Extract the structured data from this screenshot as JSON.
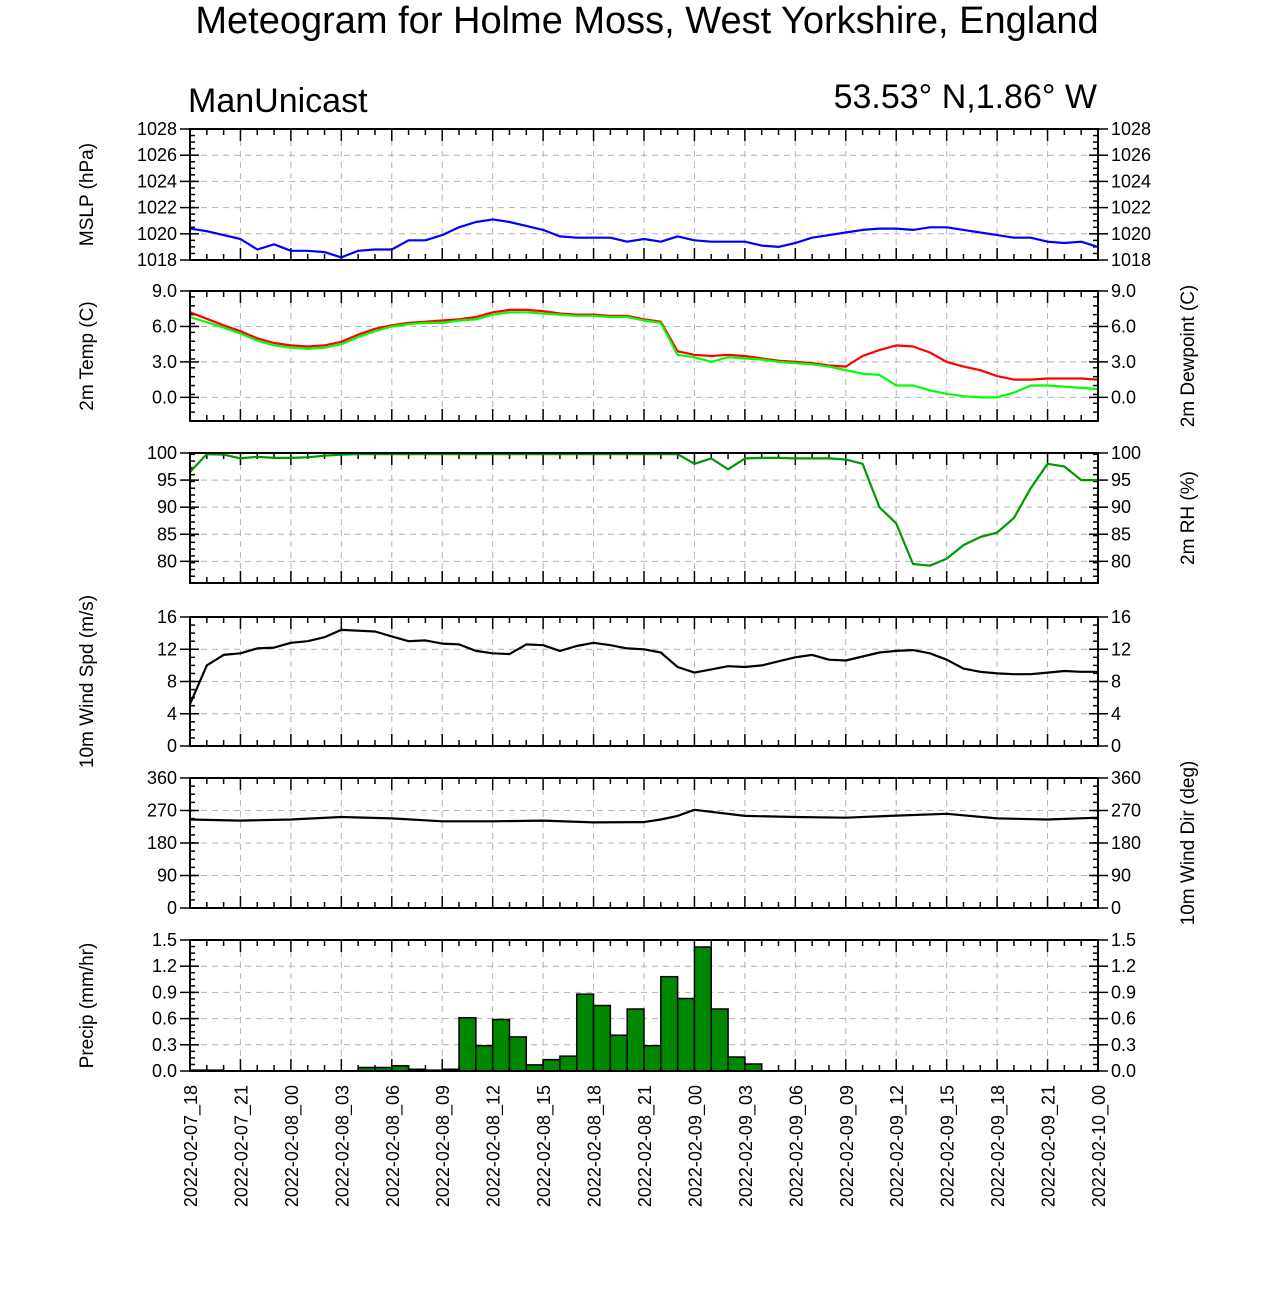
{
  "title": "Meteogram for Holme Moss, West Yorkshire, England",
  "model": "ManUnicast",
  "location": "53.53° N,1.86° W",
  "chart_data": [
    {
      "type": "line",
      "name": "mslp",
      "ylabel": "MSLP (hPa)",
      "ylim": [
        1018,
        1028
      ],
      "yticks": [
        "1018",
        "1020",
        "1022",
        "1024",
        "1026",
        "1028"
      ],
      "grid": true,
      "x_hours": [
        0,
        1,
        2,
        3,
        4,
        5,
        6,
        7,
        8,
        9,
        10,
        11,
        12,
        13,
        14,
        15,
        16,
        17,
        18,
        19,
        20,
        21,
        22,
        23,
        24,
        25,
        26,
        27,
        28,
        29,
        30,
        31,
        32,
        33,
        34,
        35,
        36,
        37,
        38,
        39,
        40,
        41,
        42,
        43,
        44,
        45,
        46,
        47,
        48,
        49,
        50,
        51,
        52,
        53,
        54
      ],
      "series": [
        {
          "color": "#0000ff",
          "values": [
            1020.4,
            1020.2,
            1019.9,
            1019.6,
            1018.8,
            1019.2,
            1018.7,
            1018.7,
            1018.6,
            1018.2,
            1018.7,
            1018.8,
            1018.8,
            1019.5,
            1019.5,
            1019.9,
            1020.5,
            1020.9,
            1021.1,
            1020.9,
            1020.6,
            1020.3,
            1019.8,
            1019.7,
            1019.7,
            1019.7,
            1019.4,
            1019.6,
            1019.4,
            1019.8,
            1019.5,
            1019.4,
            1019.4,
            1019.4,
            1019.1,
            1019.0,
            1019.3,
            1019.7,
            1019.9,
            1020.1,
            1020.3,
            1020.4,
            1020.4,
            1020.3,
            1020.5,
            1020.5,
            1020.3,
            1020.1,
            1019.9,
            1019.7,
            1019.7,
            1019.4,
            1019.3,
            1019.4,
            1019.0
          ]
        }
      ]
    },
    {
      "type": "line",
      "name": "temp-dewpoint",
      "ylabel": "2m Temp (C)",
      "ylabel_right": "2m Dewpoint (C)",
      "ylim": [
        -2,
        9
      ],
      "yticks": [
        "0.0",
        "3.0",
        "6.0",
        "9.0"
      ],
      "grid": true,
      "x_hours": [
        0,
        2,
        3,
        4,
        5,
        6,
        7,
        8,
        9,
        10,
        11,
        12,
        13,
        14,
        15,
        16,
        17,
        18,
        19,
        20,
        21,
        22,
        23,
        24,
        25,
        26,
        27,
        28,
        29,
        30,
        31,
        32,
        33,
        34,
        35,
        36,
        37,
        38,
        39,
        40,
        41,
        42,
        43,
        44,
        45,
        46,
        47,
        48,
        49,
        50,
        51,
        52,
        53,
        54
      ],
      "series": [
        {
          "color": "#ff0000",
          "values": [
            7.2,
            6.1,
            5.6,
            5.0,
            4.6,
            4.4,
            4.3,
            4.4,
            4.7,
            5.3,
            5.8,
            6.1,
            6.3,
            6.4,
            6.5,
            6.6,
            6.8,
            7.2,
            7.4,
            7.4,
            7.3,
            7.1,
            7.0,
            7.0,
            6.9,
            6.9,
            6.6,
            6.4,
            3.9,
            3.6,
            3.5,
            3.6,
            3.5,
            3.3,
            3.1,
            3.0,
            2.9,
            2.7,
            2.6,
            3.5,
            4.0,
            4.4,
            4.3,
            3.8,
            3.0,
            2.6,
            2.3,
            1.8,
            1.5,
            1.5,
            1.6,
            1.6,
            1.6,
            1.5
          ]
        },
        {
          "color": "#00ff00",
          "values": [
            6.8,
            5.9,
            5.4,
            4.8,
            4.4,
            4.2,
            4.1,
            4.2,
            4.5,
            5.1,
            5.6,
            6.0,
            6.2,
            6.3,
            6.3,
            6.5,
            6.6,
            7.0,
            7.2,
            7.2,
            7.1,
            7.0,
            6.9,
            6.9,
            6.8,
            6.8,
            6.5,
            6.3,
            3.6,
            3.4,
            3.0,
            3.4,
            3.3,
            3.2,
            3.0,
            2.9,
            2.8,
            2.6,
            2.3,
            2.0,
            1.9,
            1.0,
            1.0,
            0.6,
            0.3,
            0.1,
            0.0,
            0.0,
            0.4,
            1.0,
            1.0,
            0.9,
            0.8,
            0.7
          ]
        }
      ]
    },
    {
      "type": "line",
      "name": "rh",
      "ylabel_right": "2m RH (%)",
      "ylim": [
        76,
        100
      ],
      "yticks": [
        "80",
        "85",
        "90",
        "95",
        "100"
      ],
      "grid": true,
      "x_hours": [
        0,
        1,
        2,
        3,
        4,
        5,
        6,
        7,
        8,
        9,
        10,
        11,
        12,
        13,
        14,
        15,
        16,
        17,
        18,
        19,
        20,
        21,
        22,
        23,
        24,
        25,
        26,
        27,
        28,
        29,
        30,
        31,
        32,
        33,
        34,
        35,
        36,
        37,
        38,
        39,
        40,
        41,
        42,
        43,
        44,
        45,
        46,
        47,
        48,
        49,
        50,
        51,
        52,
        53,
        54
      ],
      "series": [
        {
          "color": "#009900",
          "values": [
            96.5,
            99.8,
            99.7,
            99.0,
            99.3,
            99.1,
            99.1,
            99.2,
            99.5,
            99.7,
            99.8,
            99.8,
            99.8,
            99.8,
            99.8,
            99.8,
            99.8,
            99.8,
            99.8,
            99.8,
            99.8,
            99.8,
            99.8,
            99.8,
            99.8,
            99.8,
            99.8,
            99.8,
            99.8,
            99.8,
            98.0,
            99.0,
            97.0,
            99.0,
            99.1,
            99.1,
            99.0,
            99.0,
            99.0,
            98.8,
            98.0,
            90.0,
            87.0,
            79.5,
            79.2,
            80.5,
            83.0,
            84.5,
            85.3,
            88.0,
            93.5,
            98.0,
            97.5,
            95.0,
            95.0
          ]
        }
      ]
    },
    {
      "type": "line",
      "name": "wind-speed",
      "ylabel": "10m Wind Spd (m/s)",
      "ylim": [
        0,
        16
      ],
      "yticks": [
        "0",
        "4",
        "8",
        "12",
        "16"
      ],
      "grid": true,
      "x_hours": [
        0,
        1,
        2,
        3,
        4,
        5,
        6,
        7,
        8,
        9,
        10,
        11,
        12,
        13,
        14,
        15,
        16,
        17,
        18,
        19,
        20,
        21,
        22,
        23,
        24,
        25,
        26,
        27,
        28,
        29,
        30,
        31,
        32,
        33,
        34,
        35,
        36,
        37,
        38,
        39,
        40,
        41,
        42,
        43,
        44,
        45,
        46,
        47,
        48,
        49,
        50,
        51,
        52,
        53,
        54
      ],
      "series": [
        {
          "color": "#000000",
          "values": [
            5.2,
            10.0,
            11.3,
            11.5,
            12.1,
            12.2,
            12.8,
            13.0,
            13.5,
            14.4,
            14.3,
            14.2,
            13.6,
            13.0,
            13.1,
            12.7,
            12.6,
            11.8,
            11.5,
            11.4,
            12.6,
            12.5,
            11.8,
            12.4,
            12.8,
            12.5,
            12.1,
            12.0,
            11.6,
            9.8,
            9.1,
            9.5,
            9.9,
            9.8,
            10.0,
            10.5,
            11.0,
            11.3,
            10.7,
            10.6,
            11.1,
            11.6,
            11.8,
            11.9,
            11.5,
            10.7,
            9.6,
            9.2,
            9.0,
            8.9,
            8.9,
            9.1,
            9.3,
            9.2,
            9.2
          ]
        }
      ]
    },
    {
      "type": "line",
      "name": "wind-direction",
      "ylabel_right": "10m Wind Dir (deg)",
      "ylim": [
        0,
        360
      ],
      "yticks": [
        "0",
        "90",
        "180",
        "270",
        "360"
      ],
      "grid": true,
      "x_hours": [
        0,
        3,
        6,
        9,
        12,
        15,
        18,
        21,
        24,
        27,
        28,
        29,
        30,
        33,
        36,
        39,
        42,
        45,
        48,
        51,
        54
      ],
      "series": [
        {
          "color": "#000000",
          "values": [
            245,
            242,
            245,
            252,
            248,
            240,
            240,
            242,
            237,
            238,
            245,
            255,
            272,
            255,
            252,
            250,
            256,
            261,
            248,
            245,
            250
          ]
        }
      ]
    },
    {
      "type": "bar",
      "name": "precipitation",
      "ylabel": "Precip (mm/hr)",
      "ylim": [
        0,
        1.5
      ],
      "yticks": [
        "0.0",
        "0.3",
        "0.6",
        "0.9",
        "1.2",
        "1.5"
      ],
      "grid": true,
      "bar_color": "#008800",
      "x_hours": [
        0,
        1,
        2,
        3,
        4,
        5,
        6,
        7,
        8,
        9,
        10,
        11,
        12,
        13,
        14,
        15,
        16,
        17,
        18,
        19,
        20,
        21,
        22,
        23,
        24,
        25,
        26,
        27,
        28,
        29,
        30,
        31,
        32,
        33,
        34,
        35,
        36,
        37,
        38,
        39,
        40,
        41,
        42,
        43,
        44,
        45,
        46,
        47,
        48,
        49,
        50,
        51,
        52,
        53
      ],
      "values": [
        0.01,
        0.01,
        0.0,
        0.0,
        0.0,
        0.0,
        0.0,
        0.0,
        0.0,
        0.0,
        0.04,
        0.04,
        0.06,
        0.02,
        0.01,
        0.02,
        0.61,
        0.29,
        0.59,
        0.39,
        0.07,
        0.13,
        0.17,
        0.88,
        0.75,
        0.41,
        0.71,
        0.29,
        1.08,
        0.83,
        1.42,
        0.71,
        0.16,
        0.08,
        0.0,
        0.0,
        0.0,
        0.0,
        0.0,
        0.0,
        0.0,
        0.0,
        0.0,
        0.0,
        0.0,
        0.0,
        0.0,
        0.0,
        0.0,
        0.0,
        0.0,
        0.0,
        0.0,
        0.0
      ]
    }
  ],
  "x_axis": {
    "labels": [
      "2022-02-07_18",
      "2022-02-07_21",
      "2022-02-08_00",
      "2022-02-08_03",
      "2022-02-08_06",
      "2022-02-08_09",
      "2022-02-08_12",
      "2022-02-08_15",
      "2022-02-08_18",
      "2022-02-08_21",
      "2022-02-09_00",
      "2022-02-09_03",
      "2022-02-09_06",
      "2022-02-09_09",
      "2022-02-09_12",
      "2022-02-09_15",
      "2022-02-09_18",
      "2022-02-09_21",
      "2022-02-10_00"
    ],
    "label_hours": [
      0,
      3,
      6,
      9,
      12,
      15,
      18,
      21,
      24,
      27,
      30,
      33,
      36,
      39,
      42,
      45,
      48,
      51,
      54
    ],
    "range_hours": [
      0,
      54
    ]
  }
}
